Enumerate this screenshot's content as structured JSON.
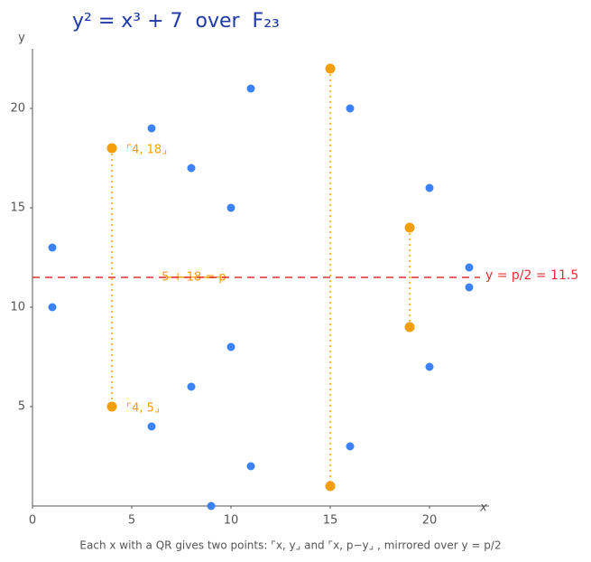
{
  "chart_data": {
    "type": "scatter",
    "title": "y² = x³ + 7  over  F₂₃",
    "xlabel": "x",
    "ylabel": "y",
    "xlim": [
      0,
      23
    ],
    "ylim": [
      0,
      23
    ],
    "xticks": [
      0,
      5,
      10,
      15,
      20
    ],
    "yticks": [
      5,
      10,
      15,
      20
    ],
    "series": [
      {
        "color": "#3b82f6",
        "x": [
          1,
          1,
          6,
          6,
          8,
          8,
          9,
          10,
          10,
          11,
          11,
          16,
          16,
          20,
          20,
          22,
          22
        ],
        "values": [
          13,
          10,
          19,
          4,
          17,
          6,
          0,
          15,
          8,
          21,
          2,
          20,
          3,
          16,
          7,
          12,
          11
        ]
      },
      {
        "color": "#f59e0b",
        "x": [
          4,
          4,
          15,
          15,
          19,
          19
        ],
        "values": [
          18,
          5,
          22,
          1,
          14,
          9
        ],
        "point_labels": [
          "⌜4, 18⌟",
          "⌜4, 5⌟",
          null,
          null,
          null,
          null
        ]
      }
    ],
    "hline": {
      "value": 11.5,
      "label": "y = p/2 = 11.5",
      "color": "#e03131"
    },
    "annotation": "5 + 18 = p",
    "caption": "Each x with a QR gives two points: ⌜x, y⌟ and ⌜x, p−y⌟ , mirrored over y = p/2"
  }
}
